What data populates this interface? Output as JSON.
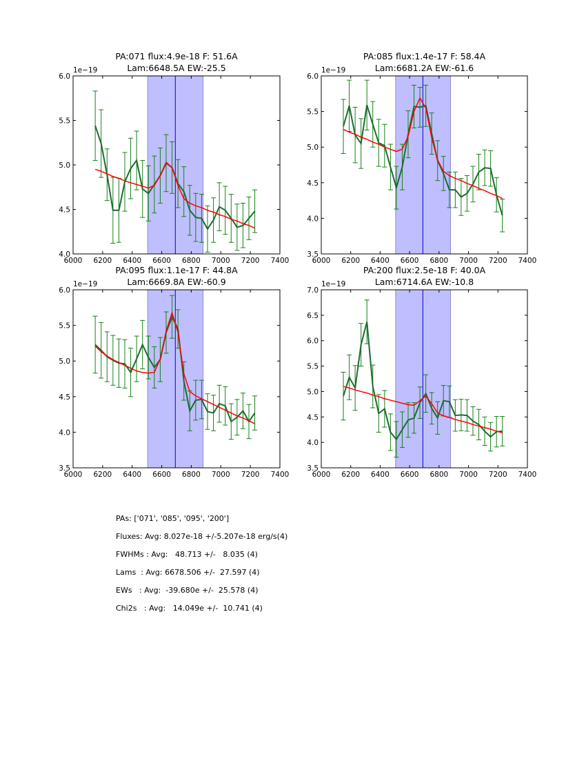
{
  "chart_data": [
    {
      "type": "line",
      "title": [
        "PA:071 flux:4.9e-18 F: 51.6A",
        "Lam:6648.5A EW:-25.5"
      ],
      "xlabel": "",
      "ylabel": "",
      "y_offset_label": "1e−19",
      "xlim": [
        6000,
        7400
      ],
      "ylim": [
        4.0,
        6.0
      ],
      "xticks": [
        6000,
        6200,
        6400,
        6600,
        6800,
        7000,
        7200,
        7400
      ],
      "xtick_labels": [
        "6000",
        "6200",
        "6400",
        "6600",
        "6800",
        "7000",
        "7200",
        "7400"
      ],
      "yticks": [
        4.0,
        4.5,
        5.0,
        5.5,
        6.0
      ],
      "ytick_labels": [
        "4.0",
        "4.5",
        "5.0",
        "5.5",
        "6.0"
      ],
      "grid": false,
      "shaded_region": [
        6505,
        6880
      ],
      "vline": 6692,
      "series": [
        {
          "name": "data",
          "x": [
            6150,
            6190,
            6230,
            6270,
            6310,
            6350,
            6390,
            6430,
            6470,
            6510,
            6550,
            6590,
            6630,
            6670,
            6710,
            6750,
            6790,
            6830,
            6870,
            6910,
            6950,
            6990,
            7030,
            7070,
            7110,
            7150,
            7190,
            7230
          ],
          "y": [
            5.44,
            5.24,
            4.89,
            4.49,
            4.49,
            4.81,
            4.96,
            5.05,
            4.73,
            4.68,
            4.78,
            4.88,
            5.02,
            4.97,
            4.79,
            4.7,
            4.49,
            4.41,
            4.4,
            4.28,
            4.38,
            4.53,
            4.49,
            4.4,
            4.3,
            4.32,
            4.4,
            4.48
          ],
          "yerr": [
            0.39,
            0.38,
            0.29,
            0.37,
            0.36,
            0.33,
            0.34,
            0.33,
            0.32,
            0.31,
            0.32,
            0.31,
            0.32,
            0.29,
            0.27,
            0.28,
            0.28,
            0.27,
            0.27,
            0.26,
            0.25,
            0.27,
            0.27,
            0.27,
            0.26,
            0.25,
            0.24,
            0.24
          ]
        },
        {
          "name": "fit",
          "x": [
            6150,
            6190,
            6230,
            6270,
            6310,
            6350,
            6390,
            6430,
            6470,
            6510,
            6550,
            6590,
            6630,
            6670,
            6710,
            6750,
            6790,
            6830,
            6870,
            6910,
            6950,
            6990,
            7030,
            7070,
            7110,
            7150,
            7190,
            7230
          ],
          "y": [
            4.95,
            4.93,
            4.9,
            4.87,
            4.85,
            4.82,
            4.8,
            4.78,
            4.76,
            4.74,
            4.77,
            4.88,
            5.03,
            4.97,
            4.77,
            4.62,
            4.57,
            4.54,
            4.52,
            4.49,
            4.47,
            4.44,
            4.42,
            4.39,
            4.37,
            4.34,
            4.32,
            4.29
          ]
        }
      ]
    },
    {
      "type": "line",
      "title": [
        "PA:085 flux:1.4e-17 F: 58.4A",
        "Lam:6681.2A EW:-61.6"
      ],
      "xlabel": "",
      "ylabel": "",
      "y_offset_label": "1e−19",
      "xlim": [
        6000,
        7400
      ],
      "ylim": [
        3.5,
        6.0
      ],
      "xticks": [
        6000,
        6200,
        6400,
        6600,
        6800,
        7000,
        7200,
        7400
      ],
      "xtick_labels": [
        "6000",
        "6200",
        "6400",
        "6600",
        "6800",
        "7000",
        "7200",
        "7400"
      ],
      "yticks": [
        3.5,
        4.0,
        4.5,
        5.0,
        5.5,
        6.0
      ],
      "ytick_labels": [
        "3.5",
        "4.0",
        "4.5",
        "5.0",
        "5.5",
        "6.0"
      ],
      "grid": false,
      "shaded_region": [
        6505,
        6878
      ],
      "vline": 6690,
      "series": [
        {
          "name": "data",
          "x": [
            6150,
            6190,
            6230,
            6270,
            6310,
            6350,
            6390,
            6430,
            6470,
            6510,
            6550,
            6590,
            6630,
            6670,
            6710,
            6750,
            6790,
            6830,
            6870,
            6910,
            6950,
            6990,
            7030,
            7070,
            7110,
            7150,
            7190,
            7230
          ],
          "y": [
            5.29,
            5.58,
            5.17,
            5.05,
            5.59,
            5.32,
            5.06,
            5.02,
            4.72,
            4.43,
            4.72,
            5.18,
            5.57,
            5.56,
            5.58,
            5.19,
            4.81,
            4.63,
            4.4,
            4.4,
            4.3,
            4.35,
            4.48,
            4.65,
            4.71,
            4.7,
            4.33,
            4.04
          ],
          "yerr": [
            0.38,
            0.36,
            0.39,
            0.35,
            0.35,
            0.32,
            0.33,
            0.3,
            0.32,
            0.3,
            0.32,
            0.33,
            0.3,
            0.28,
            0.29,
            0.29,
            0.28,
            0.24,
            0.25,
            0.25,
            0.26,
            0.25,
            0.25,
            0.25,
            0.25,
            0.25,
            0.24,
            0.23
          ]
        },
        {
          "name": "fit",
          "x": [
            6150,
            6190,
            6230,
            6270,
            6310,
            6350,
            6390,
            6430,
            6470,
            6510,
            6550,
            6590,
            6630,
            6670,
            6710,
            6750,
            6790,
            6830,
            6870,
            6910,
            6950,
            6990,
            7030,
            7070,
            7110,
            7150,
            7190,
            7230
          ],
          "y": [
            5.25,
            5.21,
            5.18,
            5.14,
            5.11,
            5.07,
            5.04,
            5.0,
            4.97,
            4.94,
            4.97,
            5.15,
            5.5,
            5.69,
            5.55,
            5.13,
            4.82,
            4.66,
            4.6,
            4.56,
            4.53,
            4.49,
            4.46,
            4.42,
            4.39,
            4.35,
            4.32,
            4.28
          ]
        }
      ]
    },
    {
      "type": "line",
      "title": [
        "PA:095 flux:1.1e-17 F: 44.8A",
        "Lam:6669.8A EW:-60.9"
      ],
      "xlabel": "",
      "ylabel": "",
      "y_offset_label": "1e−19",
      "xlim": [
        6000,
        7400
      ],
      "ylim": [
        3.5,
        6.0
      ],
      "xticks": [
        6000,
        6200,
        6400,
        6600,
        6800,
        7000,
        7200,
        7400
      ],
      "xtick_labels": [
        "6000",
        "6200",
        "6400",
        "6600",
        "6800",
        "7000",
        "7200",
        "7400"
      ],
      "yticks": [
        3.5,
        4.0,
        4.5,
        5.0,
        5.5,
        6.0
      ],
      "ytick_labels": [
        "3.5",
        "4.0",
        "4.5",
        "5.0",
        "5.5",
        "6.0"
      ],
      "grid": false,
      "shaded_region": [
        6505,
        6880
      ],
      "vline": 6692,
      "series": [
        {
          "name": "data",
          "x": [
            6150,
            6190,
            6230,
            6270,
            6310,
            6350,
            6390,
            6430,
            6470,
            6510,
            6550,
            6590,
            6630,
            6670,
            6710,
            6750,
            6790,
            6830,
            6870,
            6910,
            6950,
            6990,
            7030,
            7070,
            7110,
            7150,
            7190,
            7230
          ],
          "y": [
            5.23,
            5.15,
            5.06,
            5.01,
            4.97,
            4.96,
            4.84,
            5.03,
            5.23,
            5.05,
            4.91,
            5.02,
            5.4,
            5.62,
            5.45,
            4.72,
            4.3,
            4.45,
            4.46,
            4.29,
            4.27,
            4.4,
            4.37,
            4.15,
            4.21,
            4.3,
            4.15,
            4.27
          ],
          "yerr": [
            0.4,
            0.39,
            0.35,
            0.35,
            0.34,
            0.34,
            0.34,
            0.32,
            0.34,
            0.3,
            0.29,
            0.31,
            0.29,
            0.3,
            0.27,
            0.27,
            0.28,
            0.28,
            0.27,
            0.25,
            0.25,
            0.26,
            0.27,
            0.25,
            0.25,
            0.25,
            0.24,
            0.24
          ]
        },
        {
          "name": "fit",
          "x": [
            6150,
            6190,
            6230,
            6270,
            6310,
            6350,
            6390,
            6430,
            6470,
            6510,
            6550,
            6590,
            6630,
            6670,
            6710,
            6750,
            6790,
            6830,
            6870,
            6910,
            6950,
            6990,
            7030,
            7070,
            7110,
            7150,
            7190,
            7230
          ],
          "y": [
            5.21,
            5.13,
            5.07,
            5.02,
            4.98,
            4.94,
            4.9,
            4.86,
            4.84,
            4.83,
            4.84,
            5.03,
            5.42,
            5.68,
            5.4,
            4.82,
            4.57,
            4.51,
            4.47,
            4.43,
            4.39,
            4.35,
            4.31,
            4.27,
            4.23,
            4.2,
            4.16,
            4.12
          ]
        }
      ]
    },
    {
      "type": "line",
      "title": [
        "PA:200 flux:2.5e-18 F: 40.0A",
        "Lam:6714.6A EW:-10.8"
      ],
      "xlabel": "",
      "ylabel": "",
      "y_offset_label": "1e−19",
      "xlim": [
        6000,
        7400
      ],
      "ylim": [
        3.5,
        7.0
      ],
      "xticks": [
        6000,
        6200,
        6400,
        6600,
        6800,
        7000,
        7200,
        7400
      ],
      "xtick_labels": [
        "6000",
        "6200",
        "6400",
        "6600",
        "6800",
        "7000",
        "7200",
        "7400"
      ],
      "yticks": [
        3.5,
        4.0,
        4.5,
        5.0,
        5.5,
        6.0,
        6.5,
        7.0
      ],
      "ytick_labels": [
        "3.5",
        "4.0",
        "4.5",
        "5.0",
        "5.5",
        "6.0",
        "6.5",
        "7.0"
      ],
      "grid": false,
      "shaded_region": [
        6505,
        6878
      ],
      "vline": 6690,
      "series": [
        {
          "name": "data",
          "x": [
            6150,
            6190,
            6230,
            6270,
            6310,
            6350,
            6390,
            6430,
            6470,
            6510,
            6550,
            6590,
            6630,
            6670,
            6710,
            6750,
            6790,
            6830,
            6870,
            6910,
            6950,
            6990,
            7030,
            7070,
            7110,
            7150,
            7190,
            7230
          ],
          "y": [
            4.91,
            5.28,
            5.07,
            5.92,
            6.37,
            5.1,
            4.57,
            4.66,
            4.2,
            4.06,
            4.25,
            4.44,
            4.48,
            4.78,
            4.96,
            4.67,
            4.48,
            4.82,
            4.8,
            4.53,
            4.54,
            4.53,
            4.42,
            4.35,
            4.22,
            4.11,
            4.21,
            4.22
          ],
          "yerr": [
            0.47,
            0.44,
            0.44,
            0.42,
            0.43,
            0.42,
            0.37,
            0.36,
            0.36,
            0.35,
            0.35,
            0.34,
            0.3,
            0.31,
            0.37,
            0.31,
            0.32,
            0.3,
            0.31,
            0.31,
            0.31,
            0.31,
            0.28,
            0.3,
            0.28,
            0.28,
            0.3,
            0.29
          ]
        },
        {
          "name": "fit",
          "x": [
            6150,
            6190,
            6230,
            6270,
            6310,
            6350,
            6390,
            6430,
            6470,
            6510,
            6550,
            6590,
            6630,
            6670,
            6710,
            6750,
            6790,
            6830,
            6870,
            6910,
            6950,
            6990,
            7030,
            7070,
            7110,
            7150,
            7190,
            7230
          ],
          "y": [
            5.1,
            5.07,
            5.03,
            5.0,
            4.97,
            4.93,
            4.9,
            4.86,
            4.83,
            4.8,
            4.77,
            4.74,
            4.73,
            4.82,
            4.91,
            4.76,
            4.58,
            4.52,
            4.49,
            4.45,
            4.42,
            4.39,
            4.35,
            4.32,
            4.29,
            4.26,
            4.22,
            4.19
          ]
        }
      ]
    }
  ],
  "colors": {
    "data_line": "#1b6b2e",
    "error_bars": "#138013",
    "fit_line": "#ff0000",
    "shaded_region": "#bfbfff",
    "shaded_edge": "#8a8ad0",
    "vline": "#0000cc",
    "axes": "#000000"
  },
  "summary": {
    "lines": [
      "PAs: ['071', '085', '095', '200']",
      "Fluxes: Avg: 8.027e-18 +/-5.207e-18 erg/s(4)",
      "FWHMs : Avg:   48.713 +/-   8.035 (4)",
      "Lams  : Avg: 6678.506 +/-  27.597 (4)",
      "EWs   : Avg:  -39.680e +/-  25.578 (4)",
      "Chi2s   : Avg:   14.049e +/-  10.741 (4)"
    ]
  }
}
